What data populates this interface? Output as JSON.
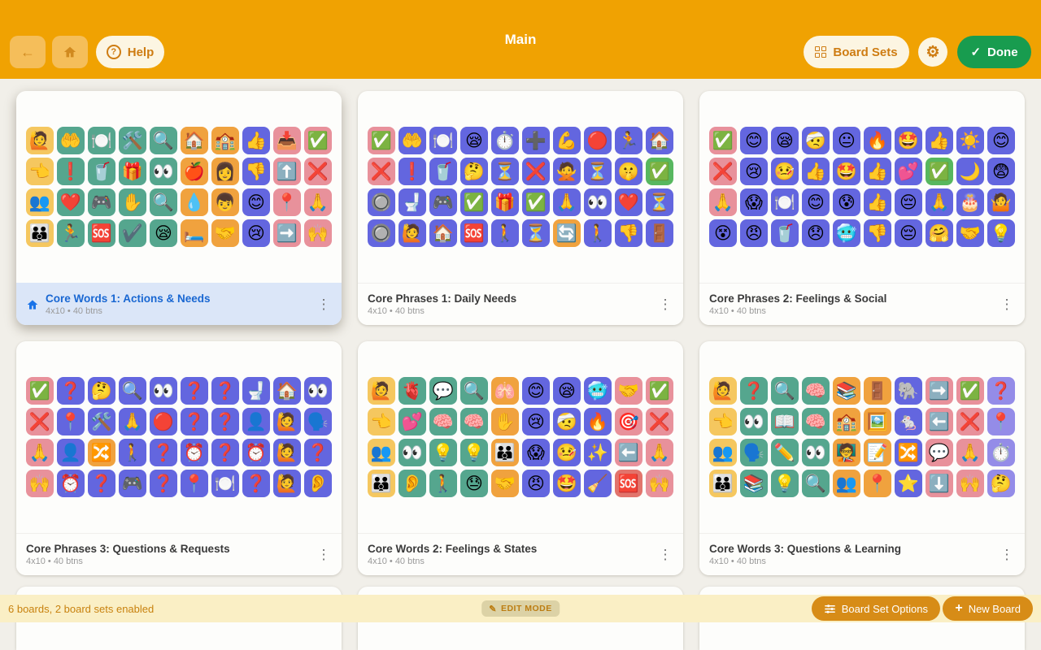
{
  "header": {
    "title": "Main",
    "help": "Help",
    "board_sets": "Board Sets",
    "done": "Done"
  },
  "cell_colors": {
    "y": "#F5C75F",
    "g": "#55A68E",
    "o": "#F0A23E",
    "b": "#6366DF",
    "p": "#E8919B",
    "G": "#57B75F",
    "r": "#E2746C",
    "v": "#948CE8"
  },
  "boards": [
    {
      "title": "Core Words 1: Actions & Needs",
      "subtitle": "4x10 • 40 btns",
      "home": true,
      "rows": [
        [
          "🙋|y",
          "🤲|g",
          "🍽️|g",
          "🛠️|g",
          "🔍|g",
          "🏠|o",
          "🏫|o",
          "👍|b",
          "📥|p",
          "✅|p"
        ],
        [
          "👈|y",
          "❗|g",
          "🥤|g",
          "🎁|g",
          "👀|g",
          "🍎|o",
          "👩|o",
          "👎|b",
          "⬆️|p",
          "❌|p"
        ],
        [
          "👥|y",
          "❤️|g",
          "🎮|g",
          "✋|g",
          "🔍|g",
          "💧|o",
          "👦|o",
          "😊|b",
          "📍|p",
          "🙏|p"
        ],
        [
          "👪|y",
          "🏃|g",
          "🆘|g",
          "✔️|g",
          "😪|g",
          "🛏️|o",
          "🤝|o",
          "😢|b",
          "➡️|p",
          "🙌|p"
        ]
      ]
    },
    {
      "title": "Core Phrases 1: Daily Needs",
      "subtitle": "4x10 • 40 btns",
      "home": false,
      "rows": [
        [
          "✅|p",
          "🤲|b",
          "🍽️|b",
          "😪|b",
          "⏱️|b",
          "➕|b",
          "💪|b",
          "🔴|b",
          "🏃|b",
          "🏠|b"
        ],
        [
          "❌|p",
          "❗|b",
          "🥤|b",
          "🤔|b",
          "⏳|b",
          "❌|b",
          "🙅|b",
          "⏳|b",
          "🤫|b",
          "✅|G"
        ],
        [
          "🔘|b",
          "🚽|b",
          "🎮|b",
          "✅|b",
          "🎁|b",
          "✅|b",
          "🙏|b",
          "👀|b",
          "❤️|b",
          "⏳|b"
        ],
        [
          "🔘|b",
          "🙋|b",
          "🏠|b",
          "🆘|b",
          "🚶|b",
          "⏳|b",
          "🔄|o",
          "🚶|b",
          "👎|b",
          "🚪|b"
        ]
      ]
    },
    {
      "title": "Core Phrases 2: Feelings & Social",
      "subtitle": "4x10 • 40 btns",
      "home": false,
      "rows": [
        [
          "✅|p",
          "😊|b",
          "😪|b",
          "🤕|b",
          "😐|b",
          "🔥|b",
          "🤩|b",
          "👍|b",
          "☀️|b",
          "😊|b"
        ],
        [
          "❌|p",
          "😢|b",
          "🤒|b",
          "👍|b",
          "🤩|b",
          "👍|b",
          "💕|b",
          "✅|G",
          "🌙|b",
          "😨|b"
        ],
        [
          "🙏|p",
          "😱|b",
          "🍽️|b",
          "😊|b",
          "😰|b",
          "👍|b",
          "😔|b",
          "🙏|b",
          "🎂|b",
          "🤷|b"
        ],
        [
          "😵|b",
          "😠|b",
          "🥤|b",
          "😞|b",
          "🥶|b",
          "👎|b",
          "😔|b",
          "🤗|b",
          "🤝|b",
          "💡|b"
        ]
      ]
    },
    {
      "title": "Core Phrases 3: Questions & Requests",
      "subtitle": "4x10 • 40 btns",
      "home": false,
      "rows": [
        [
          "✅|p",
          "❓|b",
          "🤔|b",
          "🔍|b",
          "👀|b",
          "❓|b",
          "❓|b",
          "🚽|b",
          "🏠|b",
          "👀|b"
        ],
        [
          "❌|p",
          "📍|b",
          "🛠️|b",
          "🙏|b",
          "🔴|b",
          "❓|b",
          "❓|b",
          "👤|b",
          "🙋|b",
          "🗣️|b"
        ],
        [
          "🙏|p",
          "👤|b",
          "🔀|o",
          "🚶|b",
          "❓|b",
          "⏰|b",
          "❓|b",
          "⏰|b",
          "🙋|b",
          "❓|b"
        ],
        [
          "🙌|p",
          "⏰|b",
          "❓|b",
          "🎮|b",
          "❓|b",
          "📍|b",
          "🍽️|b",
          "❓|b",
          "🙋|b",
          "👂|b"
        ]
      ]
    },
    {
      "title": "Core Words 2: Feelings & States",
      "subtitle": "4x10 • 40 btns",
      "home": false,
      "rows": [
        [
          "🙋|y",
          "🫀|g",
          "💬|g",
          "🔍|g",
          "🫁|o",
          "😊|b",
          "😪|b",
          "🥶|b",
          "🤝|p",
          "✅|p"
        ],
        [
          "👈|y",
          "💕|g",
          "🧠|g",
          "🧠|g",
          "✋|o",
          "😢|b",
          "🤕|b",
          "🔥|b",
          "🎯|p",
          "❌|p"
        ],
        [
          "👥|y",
          "👀|g",
          "💡|g",
          "💡|g",
          "👪|o",
          "😱|b",
          "🤒|b",
          "✨|b",
          "⬅️|p",
          "🙏|p"
        ],
        [
          "👪|y",
          "👂|g",
          "🚶|g",
          "😓|g",
          "🤝|o",
          "😠|b",
          "🤩|b",
          "🧹|b",
          "🆘|r",
          "🙌|p"
        ]
      ]
    },
    {
      "title": "Core Words 3: Questions & Learning",
      "subtitle": "4x10 • 40 btns",
      "home": false,
      "rows": [
        [
          "🙋|y",
          "❓|g",
          "🔍|g",
          "🧠|g",
          "📚|o",
          "🚪|o",
          "🐘|b",
          "➡️|p",
          "✅|p",
          "❓|v"
        ],
        [
          "👈|y",
          "👀|g",
          "📖|g",
          "🧠|g",
          "🏫|o",
          "🖼️|o",
          "🐁|b",
          "⬅️|p",
          "❌|p",
          "📍|v"
        ],
        [
          "👥|y",
          "🗣️|g",
          "✏️|g",
          "👀|g",
          "🧑‍🏫|o",
          "📝|o",
          "🔀|b",
          "💬|p",
          "🙏|p",
          "⏱️|v"
        ],
        [
          "👪|y",
          "📚|g",
          "💡|g",
          "🔍|g",
          "👥|o",
          "📍|o",
          "⭐|b",
          "⬇️|p",
          "🙌|p",
          "🤔|v"
        ]
      ]
    }
  ],
  "bottom_bar": {
    "status": "6 boards, 2 board sets enabled",
    "edit_mode": "EDIT MODE",
    "board_set_options": "Board Set Options",
    "new_board": "New Board"
  }
}
